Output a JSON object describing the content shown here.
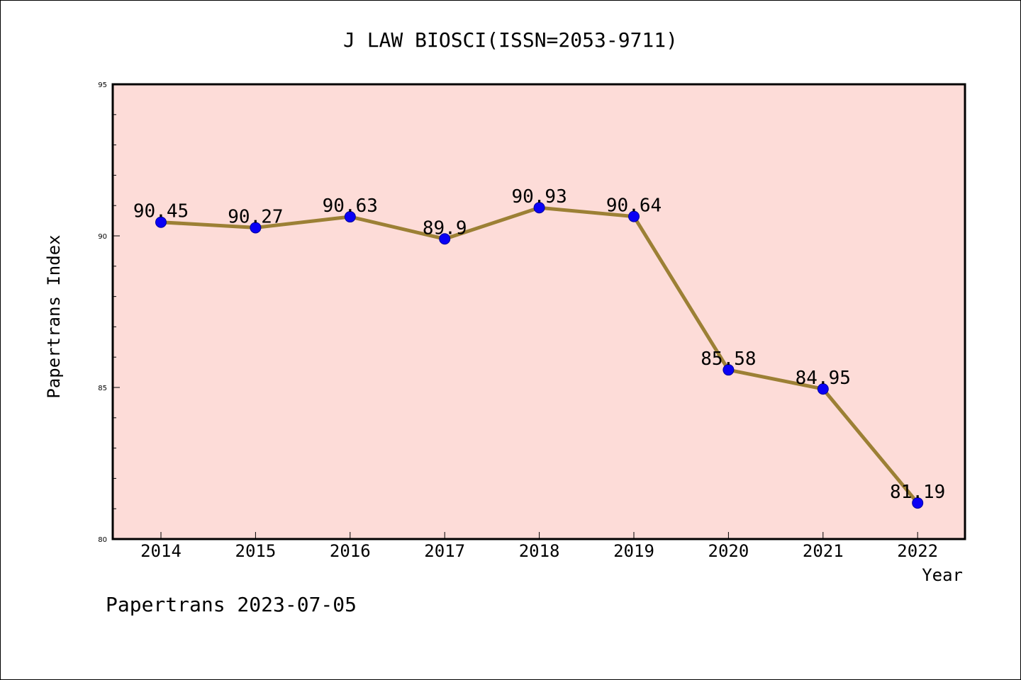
{
  "chart_data": {
    "type": "line",
    "title": "J LAW BIOSCI(ISSN=2053-9711)",
    "xlabel": "Year",
    "ylabel": "Papertrans Index",
    "footer": "Papertrans 2023-07-05",
    "categories": [
      "2014",
      "2015",
      "2016",
      "2017",
      "2018",
      "2019",
      "2020",
      "2021",
      "2022"
    ],
    "values": [
      90.45,
      90.27,
      90.63,
      89.9,
      90.93,
      90.64,
      85.58,
      84.95,
      81.19
    ],
    "data_labels": [
      "90.45",
      "90.27",
      "90.63",
      "89.9",
      "90.93",
      "90.64",
      "85.58",
      "84.95",
      "81.19"
    ],
    "ylim": [
      80,
      95
    ],
    "yticks": [
      "80",
      "85",
      "90",
      "95"
    ],
    "grid": false,
    "legend": "none",
    "colors": {
      "plot_background": "#fddcd8",
      "line": "#9c8035",
      "marker": "#0a00f5",
      "marker_edge": "#00009c",
      "axis": "#000000"
    }
  }
}
